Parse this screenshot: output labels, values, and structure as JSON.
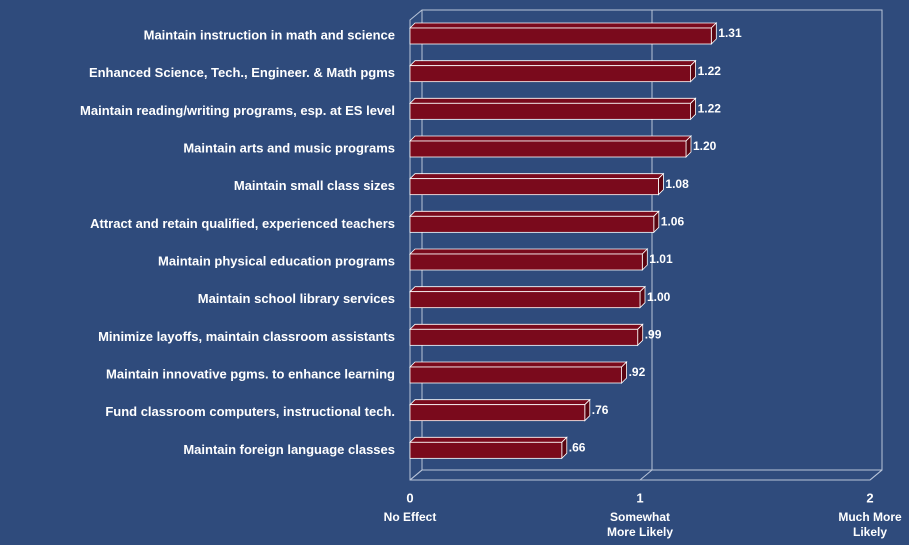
{
  "chart_data": {
    "type": "bar",
    "orientation": "horizontal",
    "categories": [
      "Maintain instruction in math and science",
      "Enhanced Science, Tech., Engineer. & Math pgms",
      "Maintain reading/writing programs, esp. at ES level",
      "Maintain arts and music programs",
      "Maintain small class sizes",
      "Attract and retain qualified, experienced teachers",
      "Maintain physical education programs",
      "Maintain school library services",
      "Minimize layoffs, maintain classroom assistants",
      "Maintain innovative pgms. to enhance learning",
      "Fund classroom computers, instructional tech.",
      "Maintain foreign language classes"
    ],
    "values": [
      1.31,
      1.22,
      1.22,
      1.2,
      1.08,
      1.06,
      1.01,
      1.0,
      0.99,
      0.92,
      0.76,
      0.66
    ],
    "value_labels": [
      "1.31",
      "1.22",
      "1.22",
      "1.20",
      "1.08",
      "1.06",
      "1.01",
      "1.00",
      ".99",
      ".92",
      ".76",
      ".66"
    ],
    "color": "#7a0a1c",
    "xlim": [
      0,
      2
    ],
    "xticks": [
      0,
      1,
      2
    ],
    "xtick_descriptions": [
      [
        "No Effect"
      ],
      [
        "Somewhat",
        "More  Likely"
      ],
      [
        "Much More",
        "Likely"
      ]
    ],
    "grid": true
  }
}
